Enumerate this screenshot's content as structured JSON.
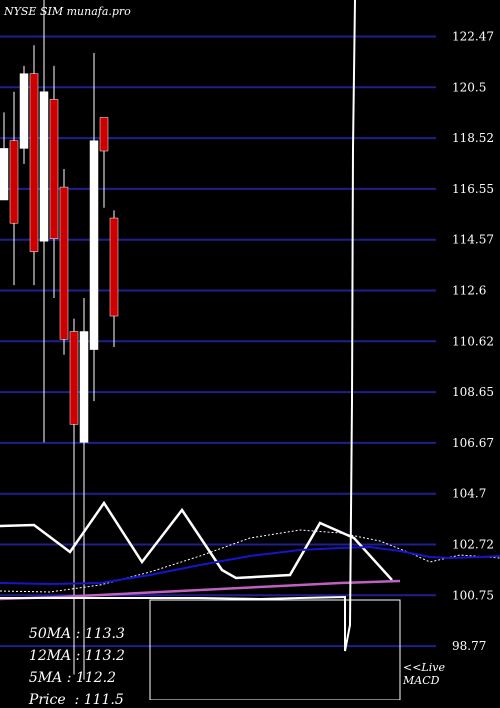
{
  "watermark": "NYSE SIM munafa.pro",
  "chart_data": {
    "type": "candlestick",
    "ylim": [
      96.9,
      124.2
    ],
    "y_ticks": [
      "122.47",
      "120.5",
      "118.52",
      "116.55",
      "114.57",
      "112.6",
      "110.62",
      "108.65",
      "106.67",
      "104.7",
      "102.72",
      "100.75",
      "98.77"
    ],
    "candles": [
      {
        "open": 115.8,
        "close": 117.8,
        "high": 119.2,
        "low": 115.8,
        "color": "white"
      },
      {
        "open": 118.1,
        "close": 114.9,
        "high": 120.0,
        "low": 112.5,
        "color": "red"
      },
      {
        "open": 117.8,
        "close": 120.7,
        "high": 121.0,
        "low": 117.2,
        "color": "white"
      },
      {
        "open": 120.7,
        "close": 113.8,
        "high": 121.8,
        "low": 112.5,
        "color": "red"
      },
      {
        "open": 114.2,
        "close": 120.0,
        "high": 123.8,
        "low": 106.4,
        "color": "white"
      },
      {
        "open": 119.7,
        "close": 114.3,
        "high": 121.0,
        "low": 112.0,
        "color": "red"
      },
      {
        "open": 116.3,
        "close": 110.4,
        "high": 117.0,
        "low": 109.8,
        "color": "red"
      },
      {
        "open": 110.7,
        "close": 107.1,
        "high": 111.2,
        "low": 97.4,
        "color": "red"
      },
      {
        "open": 106.4,
        "close": 110.7,
        "high": 112.0,
        "low": 97.2,
        "color": "white"
      },
      {
        "open": 110.0,
        "close": 118.1,
        "high": 121.5,
        "low": 108.0,
        "color": "white"
      },
      {
        "open": 119.0,
        "close": 117.7,
        "high": 119.0,
        "low": 115.5,
        "color": "red"
      },
      {
        "open": 115.1,
        "close": 111.3,
        "high": 115.4,
        "low": 110.1,
        "color": "red"
      }
    ],
    "ma50": {
      "label": "50MA",
      "value": "113.3"
    },
    "ma12": {
      "label": "12MA",
      "value": "113.2"
    },
    "ma5": {
      "label": "5MA",
      "value": "112.2"
    },
    "price": {
      "label": "Price  ",
      "value": "111.5"
    },
    "macd_label": "<<Live\nMACD",
    "macd_lines": {
      "white": [
        [
          0,
          526
        ],
        [
          34,
          525
        ],
        [
          70,
          552
        ],
        [
          104,
          503
        ],
        [
          142,
          562
        ],
        [
          182,
          510
        ],
        [
          222,
          570
        ],
        [
          236,
          578
        ],
        [
          290,
          575
        ],
        [
          320,
          523
        ],
        [
          354,
          538
        ],
        [
          392,
          580
        ]
      ],
      "white_dotted": [
        [
          0,
          591
        ],
        [
          50,
          592
        ],
        [
          100,
          585
        ],
        [
          150,
          572
        ],
        [
          200,
          556
        ],
        [
          250,
          538
        ],
        [
          300,
          530
        ],
        [
          340,
          533
        ],
        [
          380,
          541
        ],
        [
          410,
          553
        ],
        [
          430,
          562
        ],
        [
          460,
          555
        ],
        [
          500,
          558
        ]
      ],
      "blue": [
        [
          0,
          583
        ],
        [
          50,
          584
        ],
        [
          100,
          583
        ],
        [
          150,
          575
        ],
        [
          200,
          565
        ],
        [
          250,
          556
        ],
        [
          300,
          550
        ],
        [
          340,
          548
        ],
        [
          370,
          547
        ],
        [
          400,
          551
        ],
        [
          430,
          557
        ],
        [
          450,
          558
        ],
        [
          480,
          557
        ],
        [
          500,
          556
        ]
      ],
      "purple": [
        [
          0,
          599
        ],
        [
          60,
          597
        ],
        [
          120,
          594
        ],
        [
          200,
          590
        ],
        [
          280,
          586
        ],
        [
          340,
          583
        ],
        [
          400,
          581
        ]
      ],
      "macd_spike": [
        [
          0,
          598
        ],
        [
          60,
          598
        ],
        [
          140,
          598
        ],
        [
          200,
          598
        ],
        [
          260,
          599
        ],
        [
          300,
          598
        ],
        [
          345,
          597
        ],
        [
          345,
          651
        ],
        [
          350,
          625
        ],
        [
          352,
          400
        ],
        [
          353,
          148
        ],
        [
          355,
          0
        ]
      ]
    }
  }
}
